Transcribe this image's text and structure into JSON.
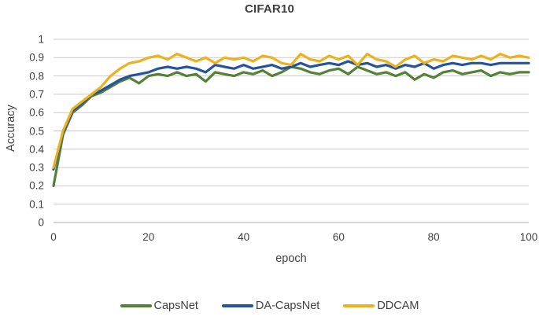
{
  "figure": {
    "background": "#ffffff",
    "text_color": "#404040",
    "grid_color": "#c9c9c9",
    "axis_line_color": "#aeaeae"
  },
  "chart_data": {
    "type": "line",
    "title": "CIFAR10",
    "xlabel": "epoch",
    "ylabel": "Accuracy",
    "xlim": [
      0,
      100
    ],
    "ylim": [
      0,
      1
    ],
    "grid": "horizontal",
    "legend_position": "bottom",
    "x_ticks": {
      "values": [
        0,
        20,
        40,
        60,
        80,
        100
      ],
      "labels": [
        "0",
        "20",
        "40",
        "60",
        "80",
        "100"
      ]
    },
    "y_ticks": {
      "values": [
        0,
        0.1,
        0.2,
        0.3,
        0.4,
        0.5,
        0.6,
        0.7,
        0.8,
        0.9,
        1
      ],
      "labels": [
        "0",
        "0.1",
        "0.2",
        "0.3",
        "0.4",
        "0.5",
        "0.6",
        "0.7",
        "0.8",
        "0.9",
        "1"
      ]
    },
    "x": [
      0,
      2,
      4,
      6,
      8,
      10,
      12,
      14,
      16,
      18,
      20,
      22,
      24,
      26,
      28,
      30,
      32,
      34,
      36,
      38,
      40,
      42,
      44,
      46,
      48,
      50,
      52,
      54,
      56,
      58,
      60,
      62,
      64,
      66,
      68,
      70,
      72,
      74,
      76,
      78,
      80,
      82,
      84,
      86,
      88,
      90,
      92,
      94,
      96,
      98,
      100
    ],
    "series": [
      {
        "name": "CapsNet",
        "color": "#538135",
        "values": [
          0.2,
          0.48,
          0.6,
          0.64,
          0.69,
          0.71,
          0.74,
          0.77,
          0.79,
          0.76,
          0.8,
          0.81,
          0.8,
          0.82,
          0.8,
          0.81,
          0.77,
          0.82,
          0.81,
          0.8,
          0.82,
          0.81,
          0.83,
          0.8,
          0.82,
          0.85,
          0.84,
          0.82,
          0.81,
          0.83,
          0.84,
          0.81,
          0.85,
          0.83,
          0.81,
          0.82,
          0.8,
          0.82,
          0.78,
          0.81,
          0.79,
          0.82,
          0.83,
          0.81,
          0.82,
          0.83,
          0.8,
          0.82,
          0.81,
          0.82,
          0.82
        ]
      },
      {
        "name": "DA-CapsNet",
        "color": "#2553a0",
        "values": [
          0.29,
          0.49,
          0.61,
          0.65,
          0.7,
          0.72,
          0.75,
          0.78,
          0.8,
          0.81,
          0.82,
          0.84,
          0.85,
          0.84,
          0.85,
          0.84,
          0.82,
          0.86,
          0.85,
          0.84,
          0.86,
          0.84,
          0.85,
          0.86,
          0.84,
          0.85,
          0.87,
          0.85,
          0.86,
          0.87,
          0.86,
          0.88,
          0.86,
          0.87,
          0.85,
          0.86,
          0.84,
          0.86,
          0.85,
          0.87,
          0.84,
          0.86,
          0.87,
          0.86,
          0.87,
          0.87,
          0.86,
          0.87,
          0.87,
          0.87,
          0.87
        ]
      },
      {
        "name": "DDCAM",
        "color": "#edb01e",
        "values": [
          0.3,
          0.5,
          0.62,
          0.66,
          0.7,
          0.74,
          0.8,
          0.84,
          0.87,
          0.88,
          0.9,
          0.91,
          0.89,
          0.92,
          0.9,
          0.88,
          0.9,
          0.87,
          0.9,
          0.89,
          0.9,
          0.88,
          0.91,
          0.9,
          0.87,
          0.86,
          0.92,
          0.89,
          0.88,
          0.91,
          0.89,
          0.91,
          0.86,
          0.92,
          0.89,
          0.88,
          0.85,
          0.89,
          0.91,
          0.87,
          0.89,
          0.88,
          0.91,
          0.9,
          0.89,
          0.91,
          0.89,
          0.92,
          0.9,
          0.91,
          0.9
        ]
      }
    ]
  }
}
